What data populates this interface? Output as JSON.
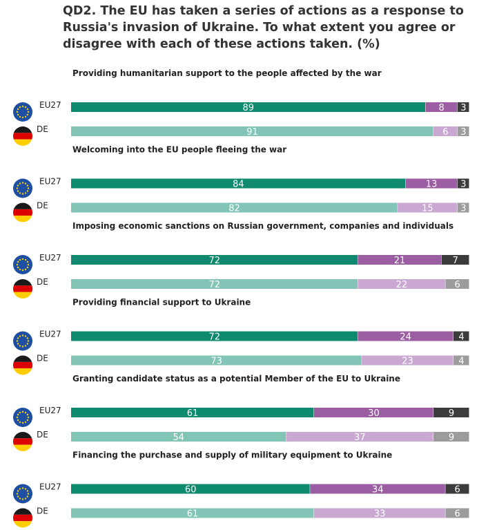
{
  "title": "QD2. The EU has taken a series of actions as a response to Russia's invasion of Ukraine. To what extent you agree or disagree with each of these actions taken. (%)",
  "chart_data": {
    "type": "bar",
    "orientation": "horizontal-stacked",
    "stack_order": [
      "agree",
      "disagree",
      "dont_know"
    ],
    "xlim": [
      0,
      100
    ],
    "grid": false,
    "legend": "none",
    "groups": [
      "EU27",
      "DE"
    ],
    "flags": {
      "EU27": "eu-flag-icon",
      "DE": "germany-flag-icon"
    },
    "colors": {
      "EU27": {
        "agree": "#0e8a6e",
        "disagree": "#9b5ea3",
        "dont_know": "#3c3c3c"
      },
      "DE": {
        "agree": "#82c4b5",
        "disagree": "#c9a8d1",
        "dont_know": "#9c9c9c"
      }
    },
    "categories": [
      {
        "label": "Providing humanitarian support to the people affected by the war",
        "EU27": [
          89,
          8,
          3
        ],
        "DE": [
          91,
          6,
          3
        ]
      },
      {
        "label": "Welcoming into the EU people fleeing the war",
        "EU27": [
          84,
          13,
          3
        ],
        "DE": [
          82,
          15,
          3
        ]
      },
      {
        "label": "Imposing economic sanctions on Russian government, companies and individuals",
        "EU27": [
          72,
          21,
          7
        ],
        "DE": [
          72,
          22,
          6
        ]
      },
      {
        "label": "Providing financial support to Ukraine",
        "EU27": [
          72,
          24,
          4
        ],
        "DE": [
          73,
          23,
          4
        ]
      },
      {
        "label": "Granting candidate status as a potential Member of the EU to Ukraine",
        "EU27": [
          61,
          30,
          9
        ],
        "DE": [
          54,
          37,
          9
        ]
      },
      {
        "label": "Financing the purchase and supply of military equipment to Ukraine",
        "EU27": [
          60,
          34,
          6
        ],
        "DE": [
          61,
          33,
          6
        ]
      }
    ]
  }
}
